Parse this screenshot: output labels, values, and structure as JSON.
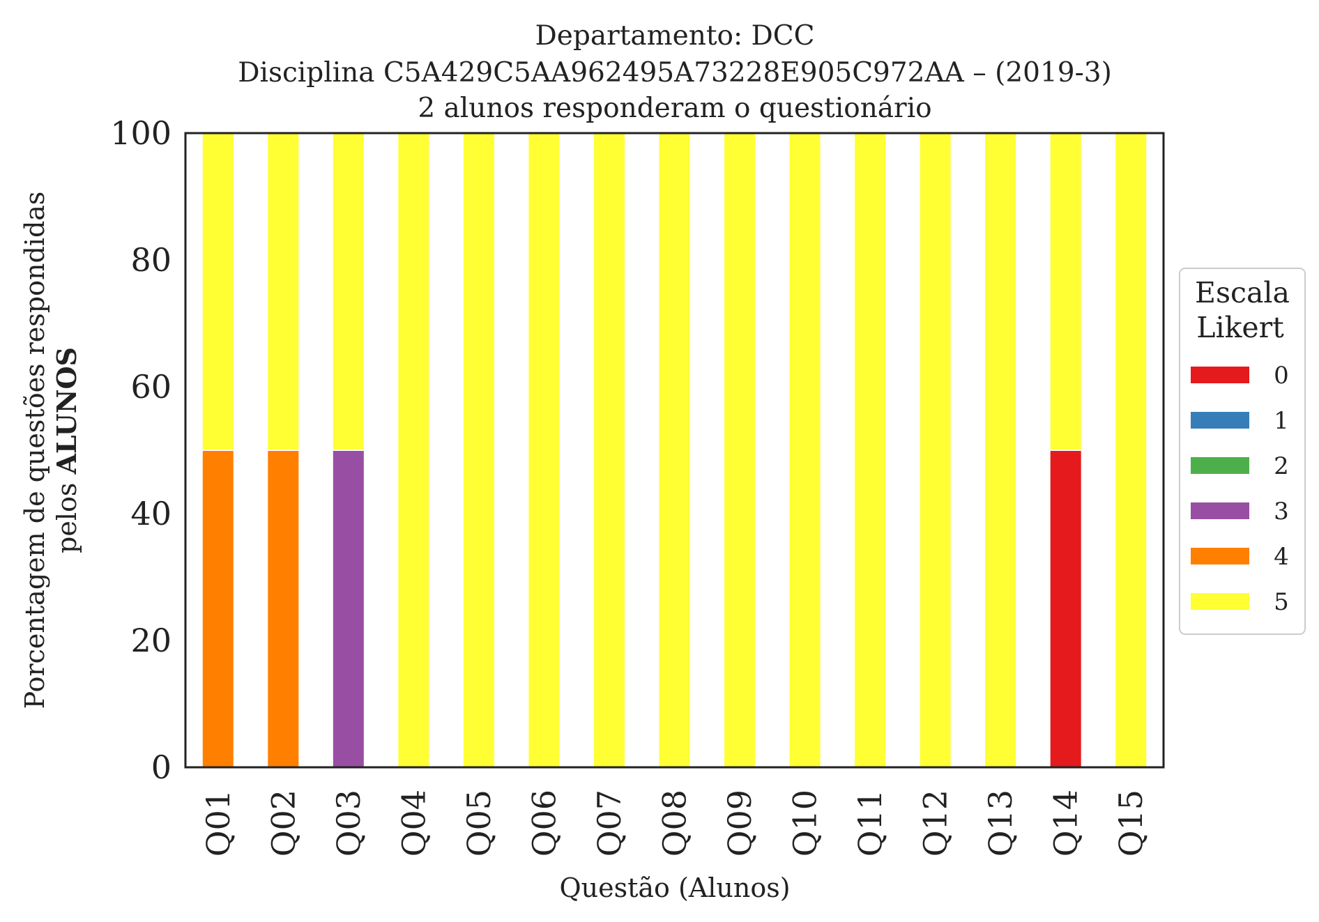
{
  "chart_data": {
    "type": "bar",
    "stacked": true,
    "title_lines": [
      "Departamento: DCC",
      "Disciplina C5A429C5AA962495A73228E905C972AA – (2019-3)",
      "2 alunos responderam o questionário"
    ],
    "xlabel": "Questão (Alunos)",
    "ylabel_lines": [
      "Porcentagem de questões respondidas",
      "pelos "
    ],
    "ylabel_bold": "ALUNOS",
    "ylim": [
      0,
      100
    ],
    "yticks": [
      "0",
      "20",
      "40",
      "60",
      "80",
      "100"
    ],
    "categories": [
      "Q01",
      "Q02",
      "Q03",
      "Q04",
      "Q05",
      "Q06",
      "Q07",
      "Q08",
      "Q09",
      "Q10",
      "Q11",
      "Q12",
      "Q13",
      "Q14",
      "Q15"
    ],
    "series": [
      {
        "name": "0",
        "color": "#e41a1c",
        "values": [
          0,
          0,
          0,
          0,
          0,
          0,
          0,
          0,
          0,
          0,
          0,
          0,
          0,
          50,
          0
        ]
      },
      {
        "name": "1",
        "color": "#377eb8",
        "values": [
          0,
          0,
          0,
          0,
          0,
          0,
          0,
          0,
          0,
          0,
          0,
          0,
          0,
          0,
          0
        ]
      },
      {
        "name": "2",
        "color": "#4daf4a",
        "values": [
          0,
          0,
          0,
          0,
          0,
          0,
          0,
          0,
          0,
          0,
          0,
          0,
          0,
          0,
          0
        ]
      },
      {
        "name": "3",
        "color": "#984ea3",
        "values": [
          0,
          0,
          50,
          0,
          0,
          0,
          0,
          0,
          0,
          0,
          0,
          0,
          0,
          0,
          0
        ]
      },
      {
        "name": "4",
        "color": "#ff7f00",
        "values": [
          50,
          50,
          0,
          0,
          0,
          0,
          0,
          0,
          0,
          0,
          0,
          0,
          0,
          0,
          0
        ]
      },
      {
        "name": "5",
        "color": "#ffff33",
        "values": [
          50,
          50,
          50,
          100,
          100,
          100,
          100,
          100,
          100,
          100,
          100,
          100,
          100,
          50,
          100
        ]
      }
    ],
    "legend": {
      "title_lines": [
        "Escala",
        "Likert"
      ],
      "placement": "right"
    },
    "grid": false
  }
}
